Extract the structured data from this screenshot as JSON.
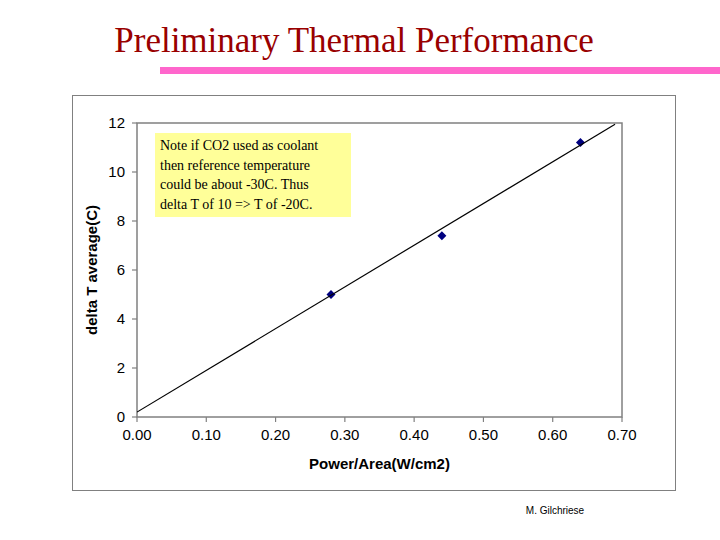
{
  "page": {
    "title": "Preliminary Thermal Performance",
    "author": "M. Gilchriese"
  },
  "chart_data": {
    "type": "scatter",
    "x_label": "Power/Area(W/cm2)",
    "y_label": "delta T average(C)",
    "annotation": [
      "Note if CO2 used as coolant",
      "then reference temperature",
      "could be about -30C. Thus",
      "delta T of 10 => T of -20C."
    ],
    "series": [
      {
        "type": "scatter",
        "marker": "diamond",
        "color": "#000080",
        "x": [
          0.28,
          0.44,
          0.64
        ],
        "values": [
          5.0,
          7.4,
          11.2
        ]
      },
      {
        "type": "line",
        "line_style": "solid",
        "color": "#000000",
        "x": [
          0,
          0.69
        ],
        "values": [
          0.2,
          11.95
        ]
      }
    ],
    "xlim": [
      0,
      0.7
    ],
    "ylim": [
      0,
      12
    ],
    "xticks": [
      {
        "value": 0,
        "label": "0.00"
      },
      {
        "value": 0.1,
        "label": "0.10"
      },
      {
        "value": 0.2,
        "label": "0.20"
      },
      {
        "value": 0.3,
        "label": "0.30"
      },
      {
        "value": 0.4,
        "label": "0.40"
      },
      {
        "value": 0.5,
        "label": "0.50"
      },
      {
        "value": 0.6,
        "label": "0.60"
      },
      {
        "value": 0.7,
        "label": "0.70"
      }
    ],
    "yticks": [
      0,
      2,
      4,
      6,
      8,
      10,
      12
    ],
    "grid": false
  }
}
